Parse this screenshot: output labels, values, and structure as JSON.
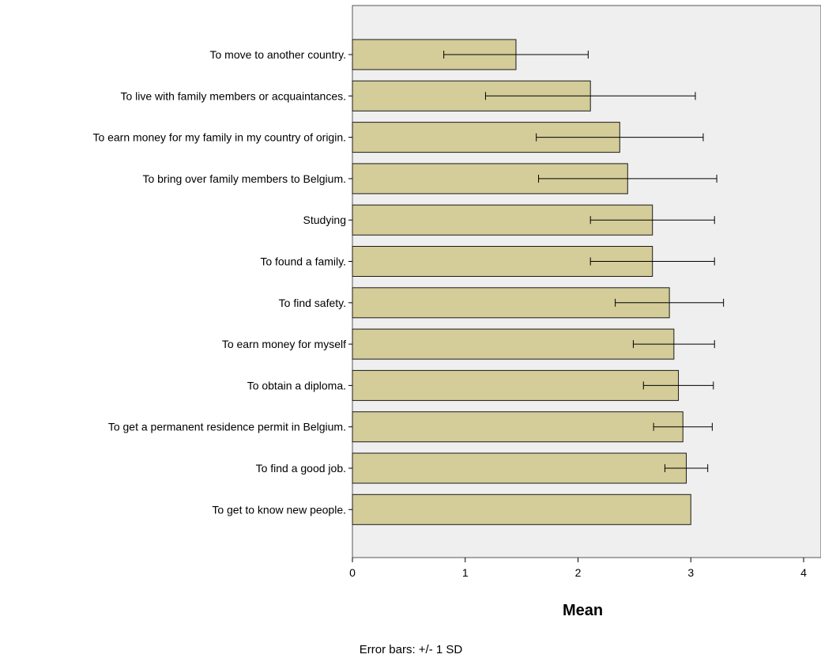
{
  "chart_data": {
    "type": "bar",
    "orientation": "horizontal",
    "categories": [
      "To move to another country.",
      "To live with family members or acquaintances.",
      "To earn money for my family in my country of origin.",
      "To bring over family members to Belgium.",
      "Studying",
      "To found a family.",
      "To find safety.",
      "To earn money for myself",
      "To obtain a diploma.",
      "To get a permanent residence permit in Belgium.",
      "To find a good job.",
      "To get to know new people."
    ],
    "values": [
      1.45,
      2.11,
      2.37,
      2.44,
      2.66,
      2.66,
      2.81,
      2.85,
      2.89,
      2.93,
      2.96,
      3.0
    ],
    "error_sd": [
      0.64,
      0.93,
      0.74,
      0.79,
      0.55,
      0.55,
      0.48,
      0.36,
      0.31,
      0.26,
      0.19,
      0.0
    ],
    "xlabel": "Mean",
    "ylabel": "",
    "xlim": [
      0,
      4
    ],
    "xticks": [
      0,
      1,
      2,
      3,
      4
    ],
    "footnote": "Error bars: +/- 1 SD",
    "grid": false,
    "colors": {
      "bar_fill": "#d4cc99",
      "bar_stroke": "#1a1a1a",
      "plot_background": "#efefef",
      "error_bar": "#000000"
    }
  }
}
